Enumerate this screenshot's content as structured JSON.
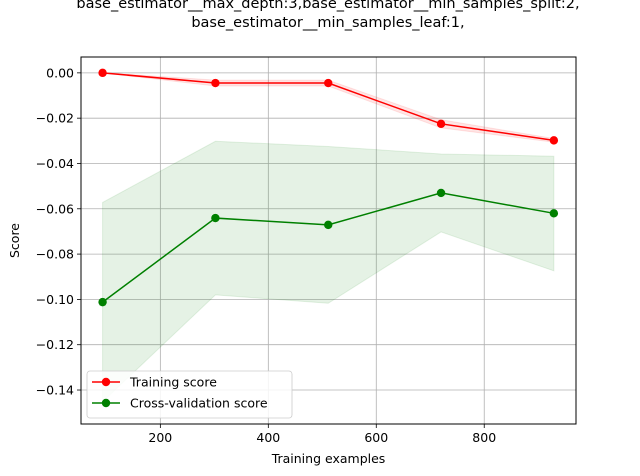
{
  "chart_data": {
    "type": "line",
    "title_lines": [
      "base_estimator__max_depth:3,base_estimator__min_samples_split:2,",
      "base_estimator__min_samples_leaf:1,"
    ],
    "xlabel": "Training examples",
    "ylabel": "Score",
    "xlim": [
      53,
      970
    ],
    "ylim": [
      -0.155,
      0.007
    ],
    "xticks": [
      200,
      400,
      600,
      800
    ],
    "yticks": [
      0.0,
      -0.02,
      -0.04,
      -0.06,
      -0.08,
      -0.1,
      -0.12,
      -0.14
    ],
    "ytick_labels": [
      "0.00",
      "−0.02",
      "−0.04",
      "−0.06",
      "−0.08",
      "−0.10",
      "−0.12",
      "−0.14"
    ],
    "grid": true,
    "legend_position": "lower-left",
    "x": [
      93,
      302,
      511,
      720,
      929
    ],
    "series": [
      {
        "name": "Training score",
        "color": "#ff0000",
        "band_color": "#ff0000",
        "values": [
          0.0,
          -0.0045,
          -0.0045,
          -0.0225,
          -0.0298
        ],
        "band_upper": [
          0.0,
          -0.0032,
          -0.0032,
          -0.0207,
          -0.029
        ],
        "band_lower": [
          0.0,
          -0.0058,
          -0.0058,
          -0.0243,
          -0.0306
        ]
      },
      {
        "name": "Cross-validation score",
        "color": "#008000",
        "band_color": "#008000",
        "values": [
          -0.1012,
          -0.0641,
          -0.0671,
          -0.053,
          -0.062
        ],
        "band_upper": [
          -0.0572,
          -0.0302,
          -0.0325,
          -0.0358,
          -0.0368
        ],
        "band_lower": [
          -0.1452,
          -0.098,
          -0.1017,
          -0.0702,
          -0.0874
        ]
      }
    ]
  }
}
